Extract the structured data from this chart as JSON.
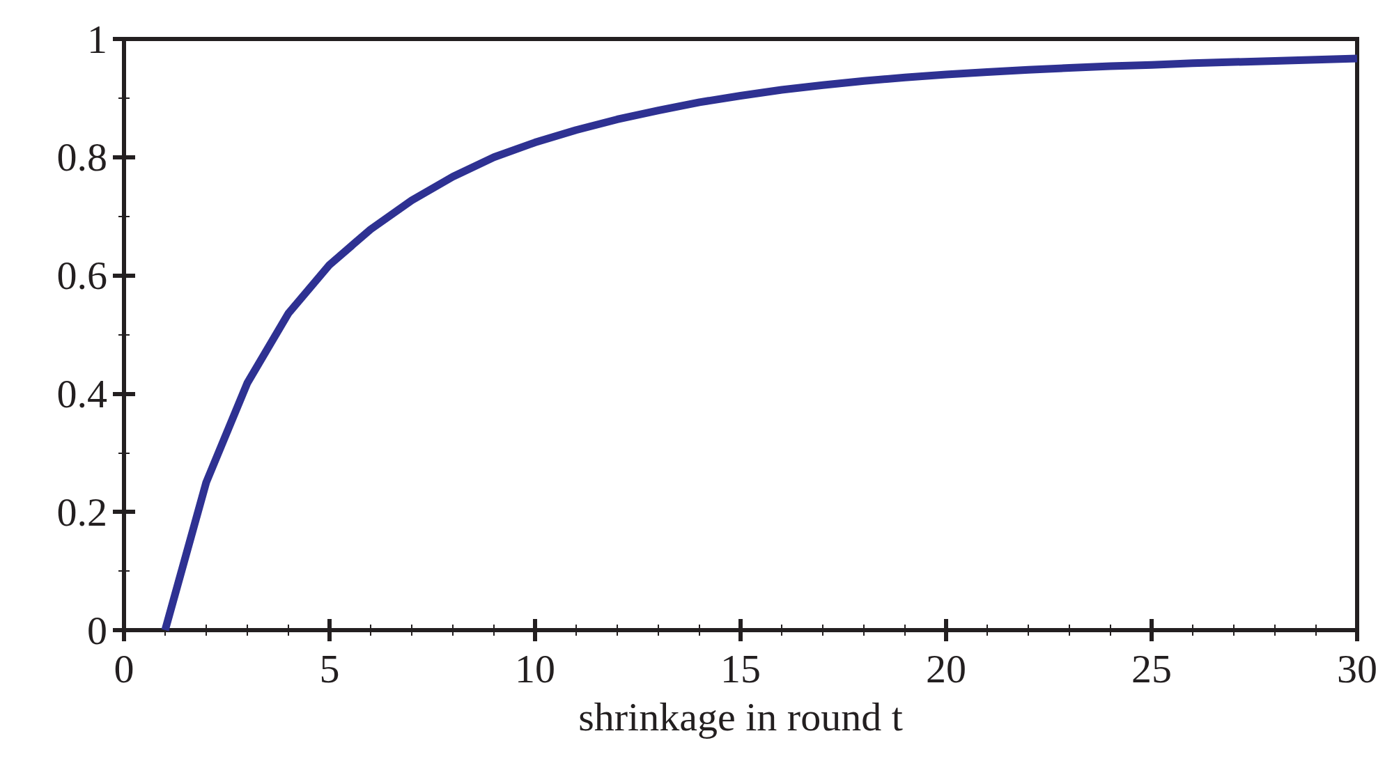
{
  "chart_data": {
    "type": "line",
    "xlabel": "shrinkage in round t",
    "x": [
      1,
      2,
      3,
      4,
      5,
      6,
      7,
      8,
      9,
      10,
      11,
      12,
      13,
      14,
      15,
      16,
      17,
      18,
      19,
      20,
      21,
      22,
      23,
      24,
      25,
      26,
      27,
      28,
      29,
      30
    ],
    "series": [
      {
        "color": "#2e3192",
        "values": [
          0,
          0.25,
          0.418,
          0.536,
          0.618,
          0.678,
          0.727,
          0.767,
          0.8,
          0.825,
          0.846,
          0.864,
          0.879,
          0.893,
          0.904,
          0.914,
          0.922,
          0.929,
          0.935,
          0.94,
          0.944,
          0.948,
          0.951,
          0.954,
          0.956,
          0.959,
          0.961,
          0.963,
          0.965,
          0.967
        ]
      }
    ],
    "xlim": [
      0,
      30
    ],
    "xticks": [
      0,
      5,
      10,
      15,
      20,
      25,
      30
    ],
    "ylim": [
      0,
      1
    ],
    "yticks": [
      0,
      {
        "value": 0.2,
        "label": "0.2"
      },
      {
        "value": 0.4,
        "label": "0.4"
      },
      {
        "value": 0.6,
        "label": "0.6"
      },
      {
        "value": 0.8,
        "label": "0.8"
      },
      1
    ],
    "grid": false,
    "marker": "none",
    "line_style": "solid"
  }
}
